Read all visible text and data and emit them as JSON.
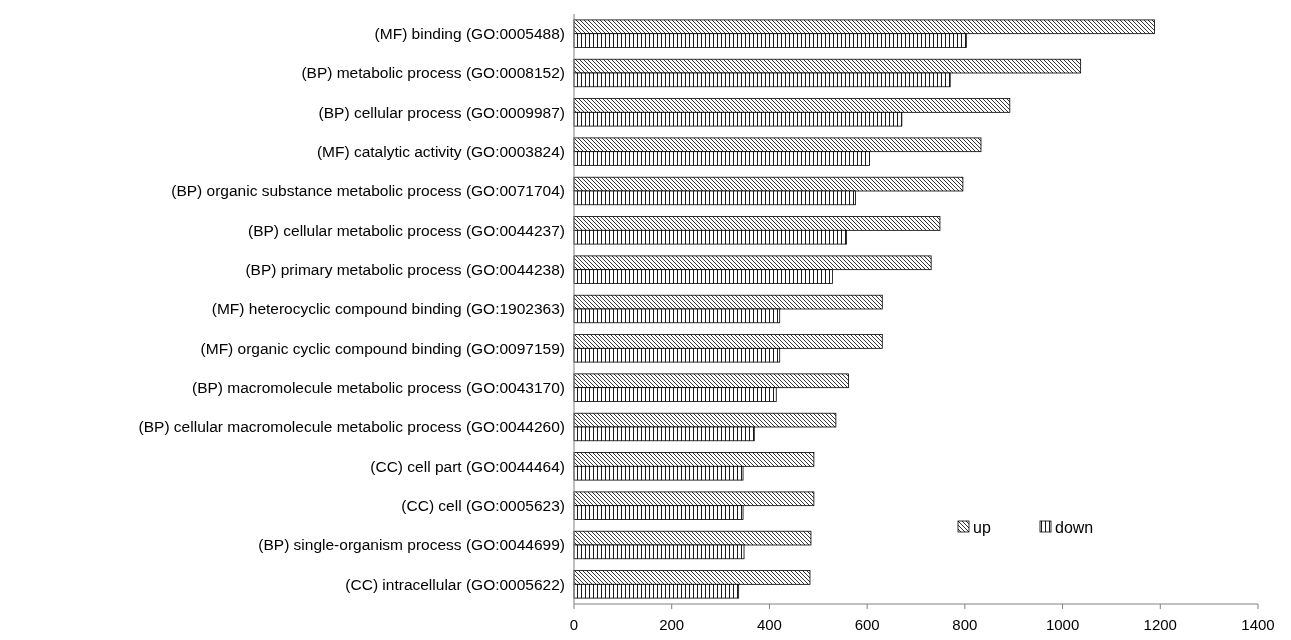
{
  "chart_data": {
    "type": "bar",
    "orientation": "horizontal",
    "categories": [
      "(MF) binding (GO:0005488)",
      "(BP) metabolic process (GO:0008152)",
      "(BP) cellular process (GO:0009987)",
      "(MF) catalytic activity (GO:0003824)",
      "(BP) organic substance metabolic process (GO:0071704)",
      "(BP) cellular metabolic process (GO:0044237)",
      "(BP) primary metabolic process (GO:0044238)",
      "(MF) heterocyclic compound binding (GO:1902363)",
      "(MF) organic cyclic compound binding (GO:0097159)",
      "(BP) macromolecule metabolic process (GO:0043170)",
      "(BP) cellular macromolecule metabolic process (GO:0044260)",
      "(CC) cell part (GO:0044464)",
      "(CC) cell (GO:0005623)",
      "(BP) single-organism process (GO:0044699)",
      "(CC) intracellular (GO:0005622)"
    ],
    "series": [
      {
        "name": "up",
        "color": "#000000",
        "values": [
          1188,
          1037,
          892,
          833,
          796,
          749,
          731,
          631,
          631,
          562,
          536,
          491,
          491,
          485,
          483
        ]
      },
      {
        "name": "down",
        "color": "#000000",
        "values": [
          803,
          770,
          671,
          605,
          576,
          558,
          529,
          421,
          421,
          414,
          369,
          346,
          346,
          348,
          337
        ]
      }
    ],
    "xlim": [
      0,
      1400
    ],
    "xticks": [
      0,
      200,
      400,
      600,
      800,
      1000,
      1200,
      1400
    ],
    "grid": false,
    "legend": "bottom right"
  }
}
